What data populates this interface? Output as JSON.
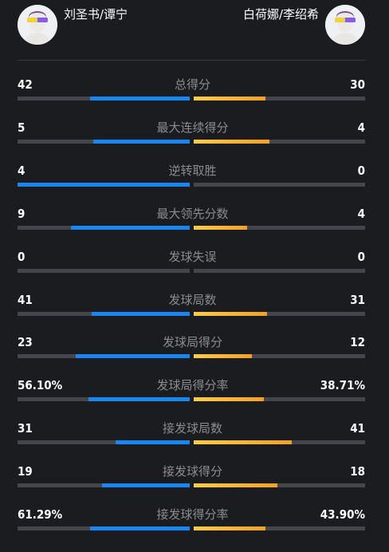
{
  "players": {
    "left": {
      "name": "刘圣书/谭宁",
      "avatar_icon": "user-avatar-icon"
    },
    "right": {
      "name": "白荷娜/李绍希",
      "avatar_icon": "user-avatar-icon"
    }
  },
  "colors": {
    "left_bar": "#1a86f0",
    "right_bar": "#f3a028",
    "track": "#45464b",
    "background": "#1b1c20"
  },
  "stats": [
    {
      "label": "总得分",
      "left": "42",
      "right": "30",
      "left_frac": 0.58,
      "right_frac": 0.42
    },
    {
      "label": "最大连续得分",
      "left": "5",
      "right": "4",
      "left_frac": 0.56,
      "right_frac": 0.44
    },
    {
      "label": "逆转取胜",
      "left": "4",
      "right": "0",
      "left_frac": 1.0,
      "right_frac": 0.0
    },
    {
      "label": "最大领先分数",
      "left": "9",
      "right": "4",
      "left_frac": 0.69,
      "right_frac": 0.31
    },
    {
      "label": "发球失误",
      "left": "0",
      "right": "0",
      "left_frac": 0.0,
      "right_frac": 0.0
    },
    {
      "label": "发球局数",
      "left": "41",
      "right": "31",
      "left_frac": 0.57,
      "right_frac": 0.43
    },
    {
      "label": "发球局得分",
      "left": "23",
      "right": "12",
      "left_frac": 0.66,
      "right_frac": 0.34
    },
    {
      "label": "发球局得分率",
      "left": "56.10%",
      "right": "38.71%",
      "left_frac": 0.59,
      "right_frac": 0.41
    },
    {
      "label": "接发球局数",
      "left": "31",
      "right": "41",
      "left_frac": 0.43,
      "right_frac": 0.57
    },
    {
      "label": "接发球得分",
      "left": "19",
      "right": "18",
      "left_frac": 0.51,
      "right_frac": 0.49
    },
    {
      "label": "接发球得分率",
      "left": "61.29%",
      "right": "43.90%",
      "left_frac": 0.58,
      "right_frac": 0.42
    }
  ]
}
